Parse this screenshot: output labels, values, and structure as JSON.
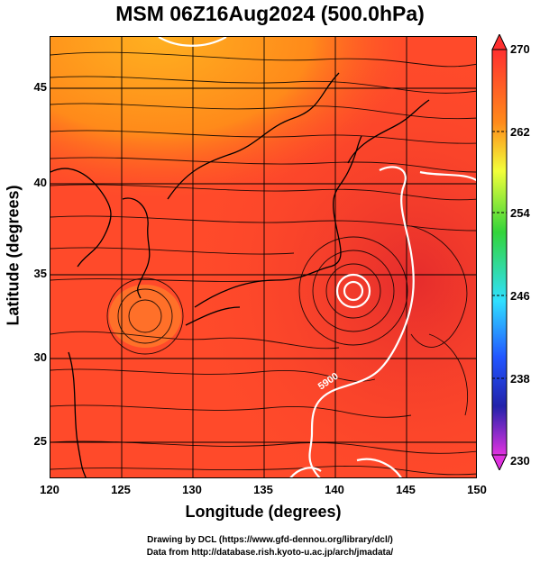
{
  "title": "MSM 06Z16Aug2024 (500.0hPa)",
  "xlabel": "Longitude (degrees)",
  "ylabel": "Latitude  (degrees)",
  "x_ticks": [
    "120",
    "125",
    "130",
    "135",
    "140",
    "145",
    "150"
  ],
  "y_ticks": [
    "25",
    "30",
    "35",
    "40",
    "45"
  ],
  "colorbar_ticks": [
    "270",
    "262",
    "254",
    "246",
    "238",
    "230"
  ],
  "contour_label": "5900",
  "credit_line1": "Drawing by DCL (https://www.gfd-dennou.org/library/dcl/)",
  "credit_line2": "Data from http://database.rish.kyoto-u.ac.jp/arch/jmadata/",
  "colors": {
    "field_warm": "#ff4a2a",
    "field_cool": "#e82a2a",
    "field_north": "#ff9a1a",
    "contour": "#ffffff",
    "coast": "#000000"
  },
  "colorbar_colors": [
    "#ff3030",
    "#ff8a1a",
    "#f2ff3a",
    "#33d43a",
    "#30e0ff",
    "#2255ff",
    "#2222aa",
    "#e032e0"
  ]
}
